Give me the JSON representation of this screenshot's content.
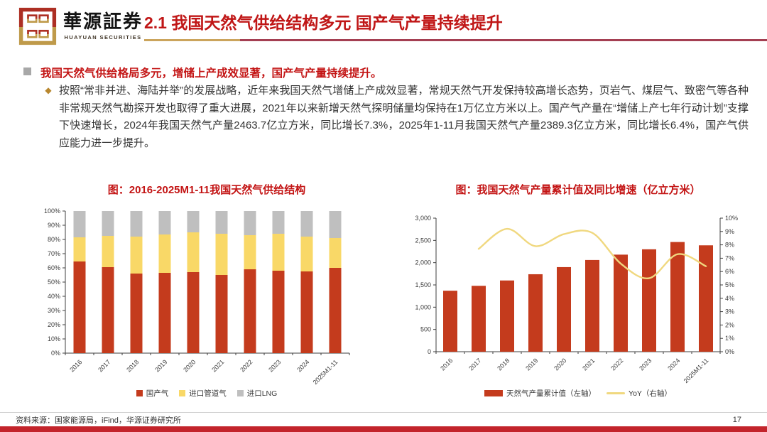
{
  "header": {
    "logo_cn": "華源証券",
    "logo_en": "HUAYUAN SECURITIES",
    "title": "2.1 我国天然气供给结构多元 国产气产量持续提升"
  },
  "content": {
    "bullet_marker": "◆",
    "heading": "我国天然气供给格局多元，增储上产成效显著，国产气产量持续提升。",
    "paragraph": "按照“常非并进、海陆并举”的发展战略，近年来我国天然气增储上产成效显著，常规天然气开发保持较高增长态势，页岩气、煤层气、致密气等各种非常规天然气勘探开发也取得了重大进展，2021年以来新增天然气探明储量均保持在1万亿立方米以上。国产气产量在“增储上产七年行动计划”支撑下快速增长，2024年我国天然气产量2463.7亿立方米，同比增长7.3%，2025年1-11月我国天然气产量2389.3亿立方米，同比增长6.4%，国产气供应能力进一步提升。"
  },
  "chart_data": [
    {
      "type": "bar",
      "variant": "stacked-100-percent",
      "title": "图：2016-2025M1-11我国天然气供给结构",
      "categories": [
        "2016",
        "2017",
        "2018",
        "2019",
        "2020",
        "2021",
        "2022",
        "2023",
        "2024",
        "2025M1-11"
      ],
      "series": [
        {
          "name": "国产气",
          "color": "#c43b1d",
          "values": [
            64.5,
            60.5,
            56,
            56.5,
            57,
            55,
            59,
            58,
            57.5,
            60
          ]
        },
        {
          "name": "进口管道气",
          "color": "#f9d867",
          "values": [
            17,
            22,
            26,
            27,
            28,
            29,
            24,
            26,
            24.5,
            21
          ]
        },
        {
          "name": "进口LNG",
          "color": "#bfbfbf",
          "values": [
            18.5,
            17.5,
            18,
            16.5,
            15,
            16,
            17,
            16,
            18,
            19
          ]
        }
      ],
      "ylim": [
        0,
        100
      ],
      "ytick_step": 10,
      "y_unit": "%",
      "grid": false,
      "legend_position": "bottom"
    },
    {
      "type": "bar+line",
      "title": "图：我国天然气产量累计值及同比增速（亿立方米）",
      "categories": [
        "2016",
        "2017",
        "2018",
        "2019",
        "2020",
        "2021",
        "2022",
        "2023",
        "2024",
        "2025M1-11"
      ],
      "series": [
        {
          "name": "天然气产量累计值（左轴）",
          "kind": "bar",
          "axis": "left",
          "color": "#c43b1d",
          "values": [
            1370,
            1480,
            1600,
            1740,
            1900,
            2060,
            2180,
            2300,
            2463.7,
            2389.3
          ]
        },
        {
          "name": "YoY（右轴）",
          "kind": "line",
          "axis": "right",
          "color": "#f0d87f",
          "values": [
            null,
            7.7,
            9.2,
            7.9,
            8.8,
            8.9,
            6.6,
            5.5,
            7.3,
            6.4
          ]
        }
      ],
      "left_ylim": [
        0,
        3000
      ],
      "left_ytick_step": 500,
      "right_ylim": [
        0,
        10
      ],
      "right_ytick_step": 1,
      "right_unit": "%",
      "grid": false,
      "legend_position": "bottom"
    }
  ],
  "footer": {
    "source": "资料来源：国家能源局，iFind，华源证券研究所",
    "page": "17"
  },
  "colors": {
    "accent_red": "#c01616",
    "chart_title_red": "#c31414",
    "underline_gold": "#cba45c",
    "underline_darkred": "#a43f52",
    "bottom_strip_red": "#c3242b",
    "bar_red": "#c43b1d",
    "pipeline_yellow": "#f9d867",
    "lng_gray": "#bfbfbf",
    "yoy_line_yellow": "#f0d87f"
  }
}
